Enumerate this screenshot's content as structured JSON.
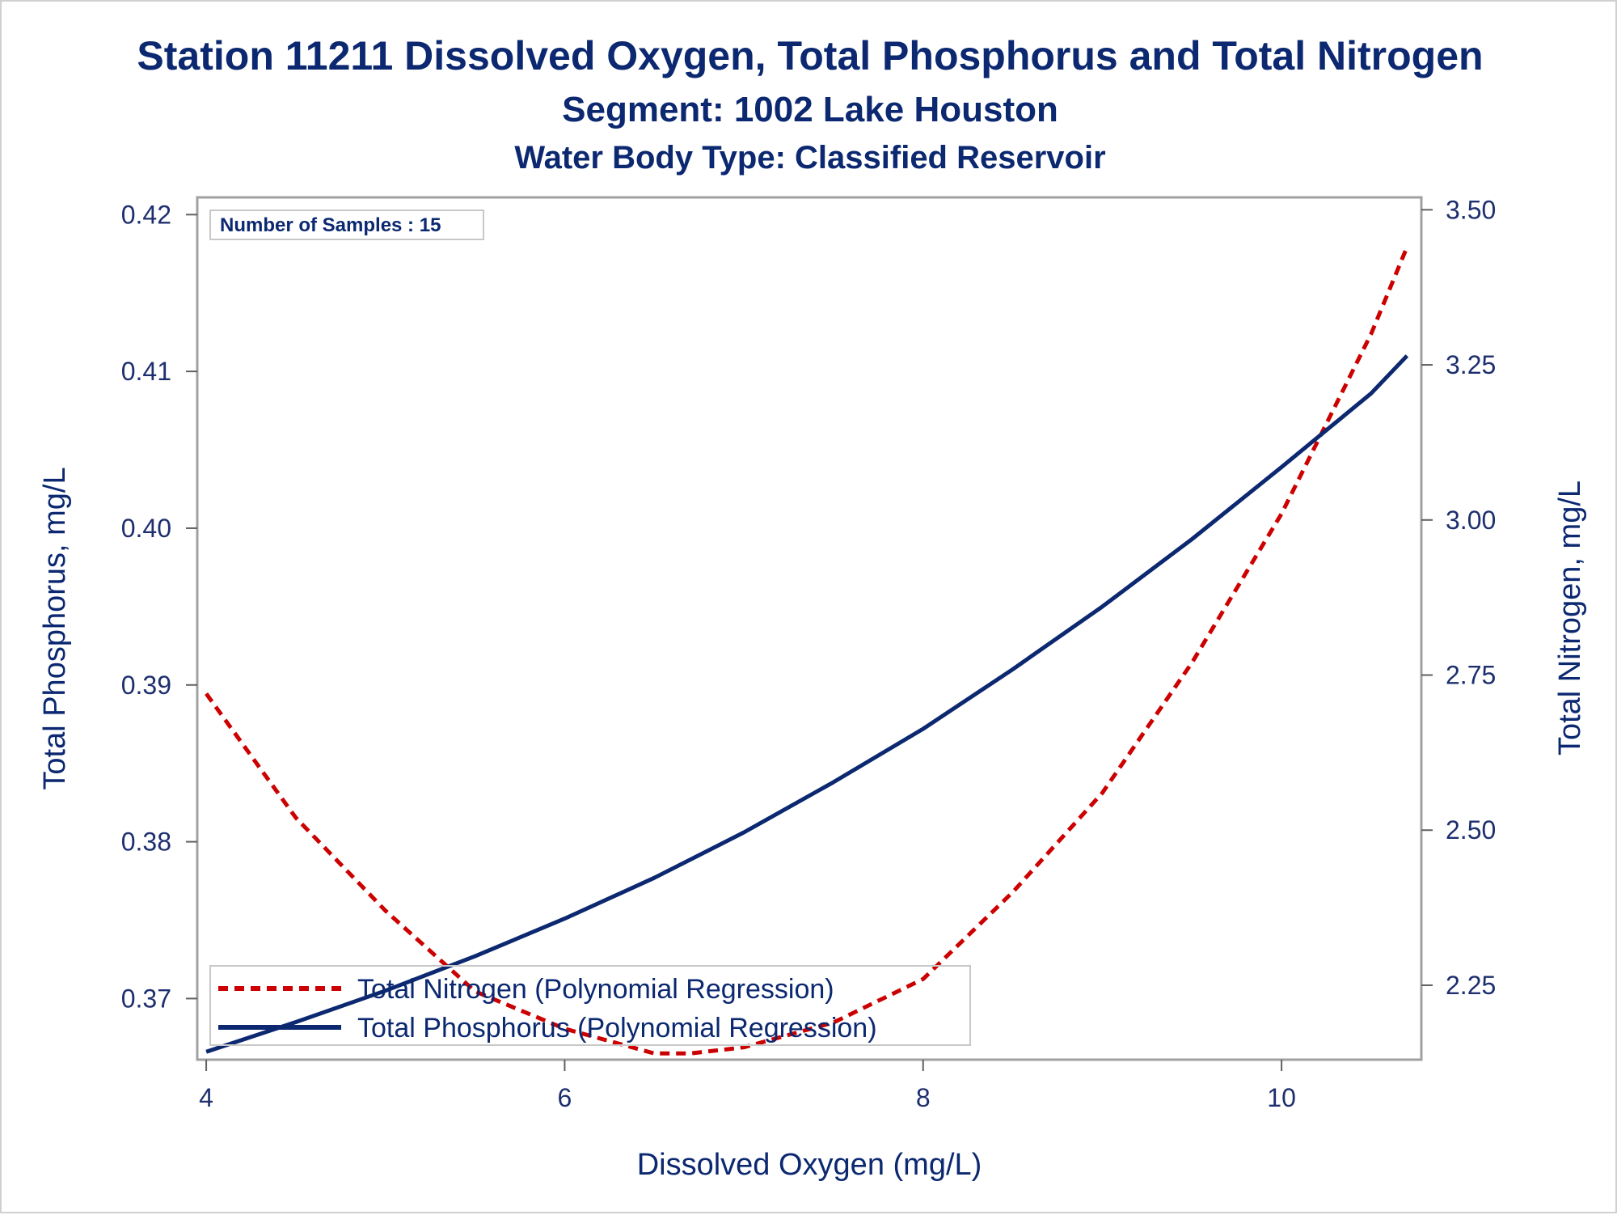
{
  "chart_data": {
    "type": "line",
    "title": "Station 11211  Dissolved Oxygen, Total Phosphorus and Total Nitrogen",
    "subtitle": "Segment: 1002  Lake Houston",
    "subtitle2": "Water Body Type: Classified Reservoir",
    "xlabel": "Dissolved Oxygen (mg/L)",
    "ylabel": "Total Phosphorus, mg/L",
    "y2label": "Total Nitrogen, mg/L",
    "annotation": "Number of Samples : 15",
    "xlim": [
      3.95,
      10.78
    ],
    "ylim": [
      0.3661,
      0.4211
    ],
    "y2lim": [
      2.13,
      3.52
    ],
    "x_ticks": [
      4,
      6,
      8,
      10
    ],
    "y_ticks": [
      0.37,
      0.38,
      0.39,
      0.4,
      0.41,
      0.42
    ],
    "y_tick_labels": [
      "0.37",
      "0.38",
      "0.39",
      "0.40",
      "0.41",
      "0.42"
    ],
    "y2_ticks": [
      2.25,
      2.5,
      2.75,
      3.0,
      3.25,
      3.5
    ],
    "y2_tick_labels": [
      "2.25",
      "2.50",
      "2.75",
      "3.00",
      "3.25",
      "3.50"
    ],
    "legend_position": "bottom-left",
    "grid": false,
    "series": [
      {
        "name": "Total Nitrogen (Polynomial Regression)",
        "axis": "right",
        "style": "dashed",
        "color": "#cc0000",
        "x": [
          4.0,
          4.5,
          5.0,
          5.5,
          6.0,
          6.5,
          6.7,
          7.0,
          7.5,
          8.0,
          8.5,
          9.0,
          9.5,
          10.0,
          10.5,
          10.7
        ],
        "y": [
          2.72,
          2.52,
          2.37,
          2.24,
          2.18,
          2.14,
          2.14,
          2.15,
          2.19,
          2.26,
          2.4,
          2.56,
          2.77,
          3.01,
          3.3,
          3.44
        ]
      },
      {
        "name": "Total Phosphorus (Polynomial Regression)",
        "axis": "left",
        "style": "solid",
        "color": "#0b2870",
        "x": [
          4.0,
          4.5,
          5.0,
          5.5,
          6.0,
          6.5,
          7.0,
          7.5,
          8.0,
          8.5,
          9.0,
          9.5,
          10.0,
          10.5,
          10.7
        ],
        "y": [
          0.3666,
          0.3685,
          0.3705,
          0.3727,
          0.3751,
          0.3777,
          0.3806,
          0.3838,
          0.3872,
          0.391,
          0.395,
          0.3993,
          0.4039,
          0.4086,
          0.411
        ]
      }
    ]
  }
}
